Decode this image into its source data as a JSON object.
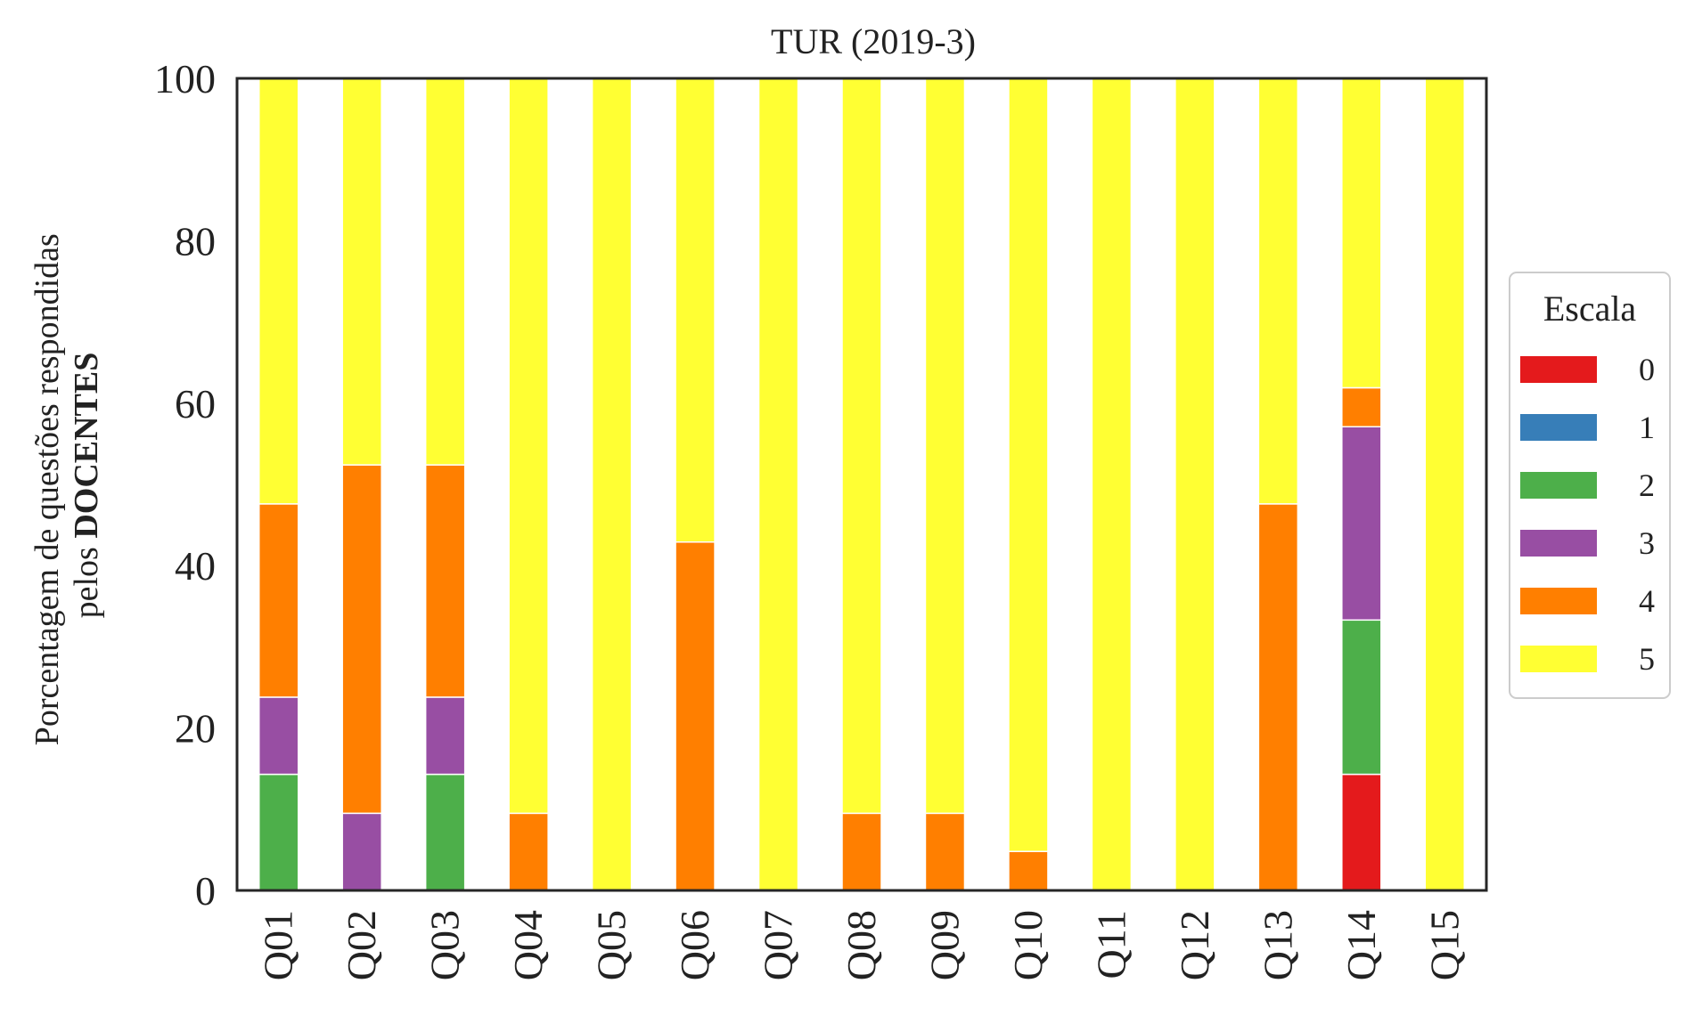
{
  "chart_data": {
    "type": "bar",
    "stacked": true,
    "title": "TUR (2019-3)",
    "ylabel_line1": "Porcentagem de questões respondidas",
    "ylabel_line2_prefix": "pelos ",
    "ylabel_line2_bold": "DOCENTES",
    "xlabel": "",
    "ylim": [
      0,
      100
    ],
    "yticks": [
      "0",
      "20",
      "40",
      "60",
      "80",
      "100"
    ],
    "categories": [
      "Q01",
      "Q02",
      "Q03",
      "Q04",
      "Q05",
      "Q06",
      "Q07",
      "Q08",
      "Q09",
      "Q10",
      "Q11",
      "Q12",
      "Q13",
      "Q14",
      "Q15"
    ],
    "legend_title": "Escala",
    "legend_placement": "right-center",
    "grid": false,
    "series": [
      {
        "name": "0",
        "color": "#e41a1c",
        "values": [
          0,
          0,
          0,
          0,
          0,
          0,
          0,
          0,
          0,
          0,
          0,
          0,
          0,
          14.3,
          0
        ]
      },
      {
        "name": "1",
        "color": "#377eb8",
        "values": [
          0,
          0,
          0,
          0,
          0,
          0,
          0,
          0,
          0,
          0,
          0,
          0,
          0,
          0,
          0
        ]
      },
      {
        "name": "2",
        "color": "#4daf4a",
        "values": [
          14.3,
          0,
          14.3,
          0,
          0,
          0,
          0,
          0,
          0,
          0,
          0,
          0,
          0,
          19.0,
          0
        ]
      },
      {
        "name": "3",
        "color": "#984ea3",
        "values": [
          9.5,
          9.5,
          9.5,
          0,
          0,
          0,
          0,
          0,
          0,
          0,
          0,
          0,
          0,
          23.8,
          0
        ]
      },
      {
        "name": "4",
        "color": "#ff7f00",
        "values": [
          23.8,
          42.9,
          28.6,
          9.5,
          0,
          42.9,
          0,
          9.5,
          9.5,
          4.8,
          0,
          0,
          47.6,
          4.8,
          0
        ]
      },
      {
        "name": "5",
        "color": "#ffff33",
        "values": [
          52.4,
          47.6,
          47.6,
          90.5,
          100,
          57.1,
          100,
          90.5,
          90.5,
          95.2,
          100,
          100,
          52.4,
          38.1,
          100
        ]
      }
    ]
  }
}
